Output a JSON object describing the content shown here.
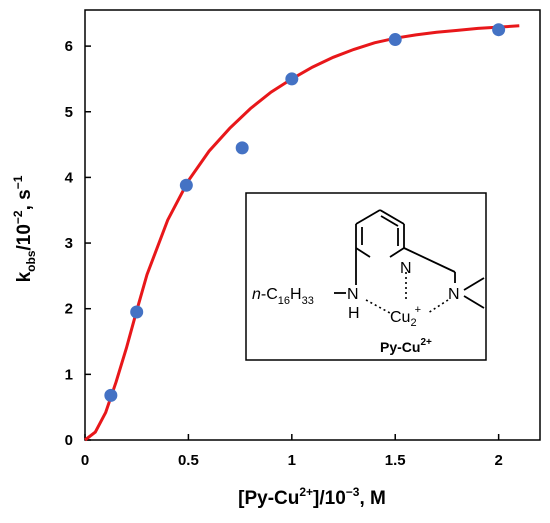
{
  "chart_data": {
    "type": "scatter",
    "title": "",
    "xlabel": {
      "main": "[Py-Cu",
      "sup": "2+",
      "rest": "]/10",
      "exp": "−3",
      "unit": ", M"
    },
    "ylabel": {
      "main": "k",
      "sub": "obs",
      "rest": "/10",
      "exp": "−2",
      "unit": ", s",
      "unit_exp": "−1"
    },
    "xlim": [
      0,
      2.2
    ],
    "ylim": [
      0,
      6.55
    ],
    "x_ticks": [
      0,
      0.5,
      1,
      1.5,
      2
    ],
    "x_tick_labels": [
      "0",
      "0.5",
      "1",
      "1.5",
      "2"
    ],
    "y_ticks": [
      0,
      1,
      2,
      3,
      4,
      5,
      6
    ],
    "y_tick_labels": [
      "0",
      "1",
      "2",
      "3",
      "4",
      "5",
      "6"
    ],
    "grid": false,
    "series": [
      {
        "kind": "points",
        "color": "#4472C4",
        "points": [
          {
            "x": 0.125,
            "y": 0.68
          },
          {
            "x": 0.25,
            "y": 1.95
          },
          {
            "x": 0.49,
            "y": 3.88
          },
          {
            "x": 0.76,
            "y": 4.45
          },
          {
            "x": 1.0,
            "y": 5.5
          },
          {
            "x": 1.5,
            "y": 6.1
          },
          {
            "x": 2.0,
            "y": 6.25
          }
        ]
      },
      {
        "kind": "fit-curve",
        "color": "#E8171A",
        "points": [
          {
            "x": 0,
            "y": 0
          },
          {
            "x": 0.05,
            "y": 0.12
          },
          {
            "x": 0.1,
            "y": 0.42
          },
          {
            "x": 0.15,
            "y": 0.88
          },
          {
            "x": 0.2,
            "y": 1.4
          },
          {
            "x": 0.25,
            "y": 1.97
          },
          {
            "x": 0.3,
            "y": 2.52
          },
          {
            "x": 0.4,
            "y": 3.35
          },
          {
            "x": 0.5,
            "y": 3.95
          },
          {
            "x": 0.6,
            "y": 4.4
          },
          {
            "x": 0.7,
            "y": 4.75
          },
          {
            "x": 0.8,
            "y": 5.05
          },
          {
            "x": 0.9,
            "y": 5.3
          },
          {
            "x": 1.0,
            "y": 5.5
          },
          {
            "x": 1.1,
            "y": 5.68
          },
          {
            "x": 1.2,
            "y": 5.83
          },
          {
            "x": 1.3,
            "y": 5.95
          },
          {
            "x": 1.4,
            "y": 6.05
          },
          {
            "x": 1.5,
            "y": 6.12
          },
          {
            "x": 1.6,
            "y": 6.17
          },
          {
            "x": 1.7,
            "y": 6.21
          },
          {
            "x": 1.8,
            "y": 6.24
          },
          {
            "x": 1.9,
            "y": 6.27
          },
          {
            "x": 2.0,
            "y": 6.29
          },
          {
            "x": 2.1,
            "y": 6.31
          }
        ]
      }
    ]
  },
  "inset": {
    "substituent": {
      "prefix": "n",
      "dash": "-C",
      "sub1": "16",
      "mid": "H",
      "sub2": "33"
    },
    "atom_NH_N": "N",
    "atom_NH_H": "H",
    "atom_pyridine_N": "N",
    "atom_amine_N": "N",
    "metal": {
      "main": "Cu",
      "sub": "2",
      "sup": "+"
    },
    "caption": {
      "main": "Py-Cu",
      "sup": "2+"
    }
  },
  "colors": {
    "points": "#4472C4",
    "curve": "#E8171A",
    "axes": "#000000"
  }
}
